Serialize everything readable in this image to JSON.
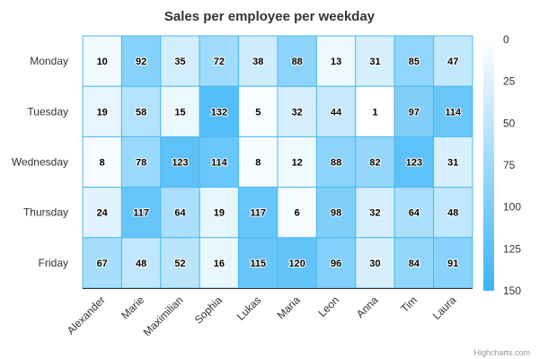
{
  "credits": "Highcharts.com",
  "chart_data": {
    "type": "heatmap",
    "title": "Sales per employee per weekday",
    "x_categories": [
      "Alexander",
      "Marie",
      "Maximilian",
      "Sophia",
      "Lukas",
      "Maria",
      "Leon",
      "Anna",
      "Tim",
      "Laura"
    ],
    "y_categories": [
      "Monday",
      "Tuesday",
      "Wednesday",
      "Thursday",
      "Friday"
    ],
    "values": [
      [
        10,
        92,
        35,
        72,
        38,
        88,
        13,
        31,
        85,
        47
      ],
      [
        19,
        58,
        15,
        132,
        5,
        32,
        44,
        1,
        97,
        114
      ],
      [
        8,
        78,
        123,
        114,
        8,
        12,
        88,
        82,
        123,
        31
      ],
      [
        24,
        117,
        64,
        19,
        117,
        6,
        98,
        32,
        64,
        48
      ],
      [
        67,
        48,
        52,
        16,
        115,
        120,
        96,
        30,
        84,
        91
      ]
    ],
    "color_axis": {
      "min": 0,
      "max": 150,
      "ticks": [
        0,
        25,
        50,
        75,
        100,
        125,
        150
      ],
      "min_color": "#FFFFFF",
      "max_color": "#3BB5F8"
    },
    "legend": "right",
    "cell_border_color": "#4FB8F0",
    "axis_line_color": "#333333"
  }
}
